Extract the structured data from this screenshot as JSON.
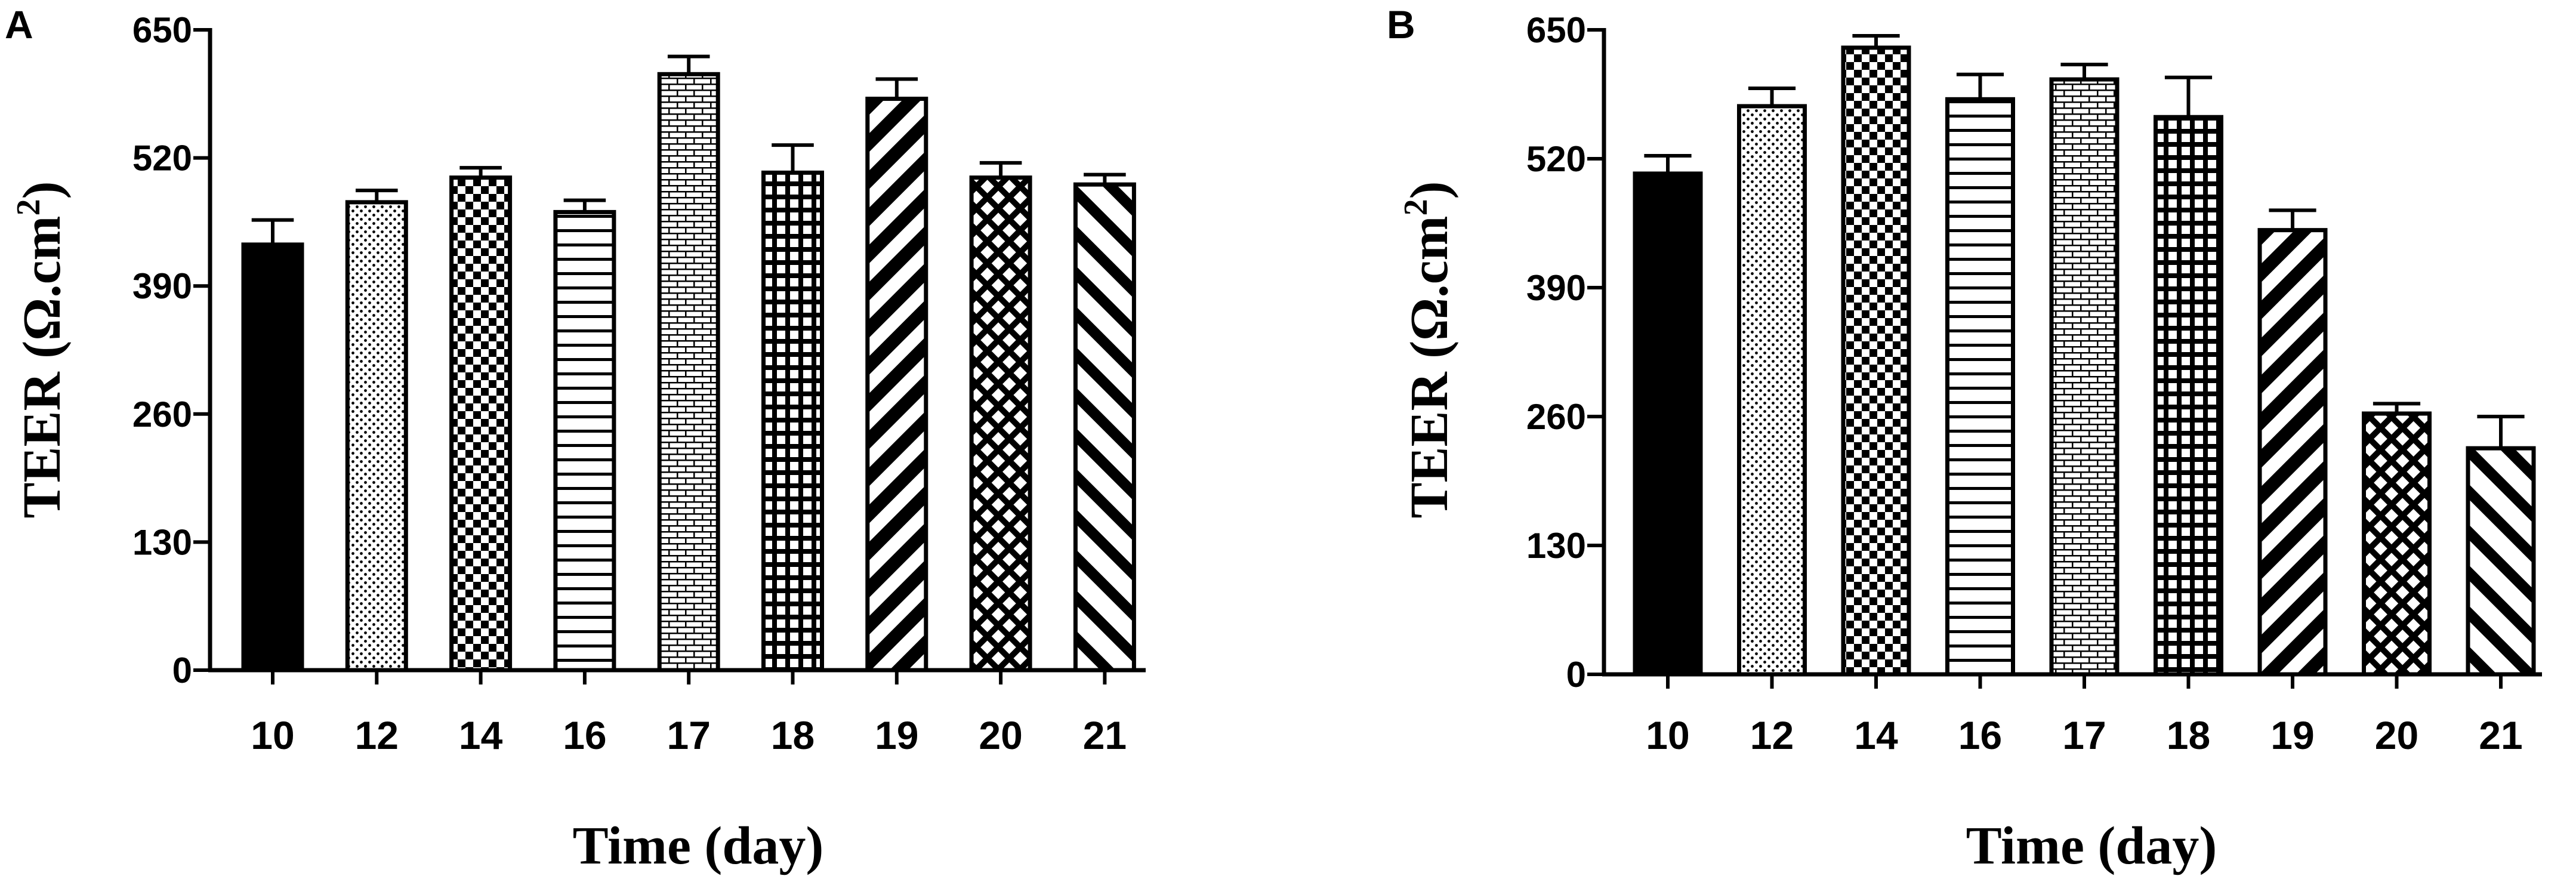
{
  "chart_data": [
    {
      "type": "bar",
      "panel": "A",
      "xlabel": "Time (day)",
      "ylabel": "TEER (Ω.cm",
      "ylabel_sup": "2",
      "ylabel_close": ")",
      "ylim": [
        0,
        650
      ],
      "yticks": [
        "0",
        "130",
        "260",
        "390",
        "520",
        "650"
      ],
      "categories": [
        "10",
        "12",
        "14",
        "16",
        "17",
        "18",
        "19",
        "20",
        "21"
      ],
      "values": [
        432,
        475,
        500,
        465,
        605,
        505,
        580,
        500,
        493
      ],
      "errors": [
        25,
        12,
        10,
        12,
        18,
        28,
        20,
        15,
        10
      ],
      "patterns": [
        "solid",
        "dots",
        "checker",
        "hlines",
        "brick",
        "grid",
        "diag-thick",
        "diamond",
        "diag-up"
      ]
    },
    {
      "type": "bar",
      "panel": "B",
      "xlabel": "Time (day)",
      "ylabel": "TEER (Ω.cm",
      "ylabel_sup": "2",
      "ylabel_close": ")",
      "ylim": [
        0,
        650
      ],
      "yticks": [
        "0",
        "130",
        "260",
        "390",
        "520",
        "650"
      ],
      "categories": [
        "10",
        "12",
        "14",
        "16",
        "17",
        "18",
        "19",
        "20",
        "21"
      ],
      "values": [
        505,
        573,
        632,
        580,
        600,
        562,
        448,
        263,
        228
      ],
      "errors": [
        18,
        18,
        12,
        25,
        15,
        40,
        20,
        10,
        32
      ],
      "patterns": [
        "solid",
        "dots",
        "checker",
        "hlines",
        "brick",
        "grid",
        "diag-thick",
        "diamond",
        "diag-up"
      ]
    }
  ]
}
